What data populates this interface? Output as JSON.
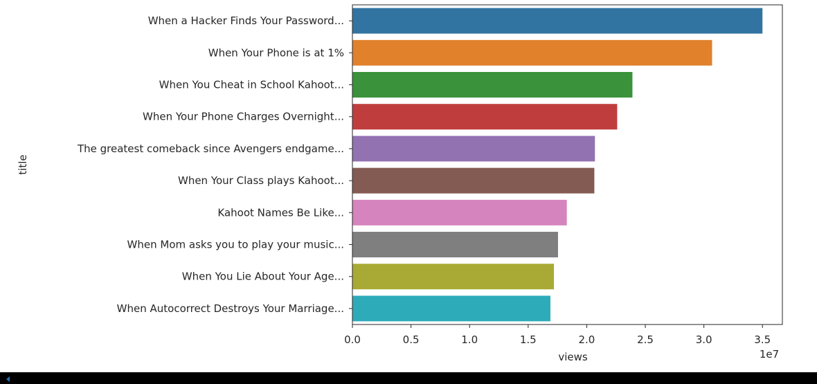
{
  "chart_data": {
    "type": "bar",
    "orientation": "horizontal",
    "categories": [
      "When a Hacker Finds Your Password...",
      "When Your Phone is at 1%",
      "When You Cheat in School Kahoot...",
      "When Your Phone Charges Overnight...",
      "The greatest comeback since Avengers endgame...",
      "When Your Class plays Kahoot...",
      "Kahoot Names Be Like...",
      "When Mom asks you to play your music...",
      "When You Lie About Your Age...",
      "When Autocorrect Destroys Your Marriage..."
    ],
    "values": [
      35000000,
      30700000,
      23900000,
      22600000,
      20700000,
      20650000,
      18300000,
      17550000,
      17200000,
      16900000
    ],
    "colors": [
      "#3274a1",
      "#e1812c",
      "#3a923a",
      "#c03d3e",
      "#9372b2",
      "#845b53",
      "#d684bd",
      "#7f7f7f",
      "#a9aa35",
      "#2eabb8"
    ],
    "xlabel": "views",
    "ylabel": "title",
    "xlim": [
      0,
      36700000
    ],
    "xticks": [
      0,
      5000000,
      10000000,
      15000000,
      20000000,
      25000000,
      30000000,
      35000000
    ],
    "xtick_labels": [
      "0.0",
      "0.5",
      "1.0",
      "1.5",
      "2.0",
      "2.5",
      "3.0",
      "3.5"
    ],
    "offset_label": "1e7",
    "grid": false
  }
}
